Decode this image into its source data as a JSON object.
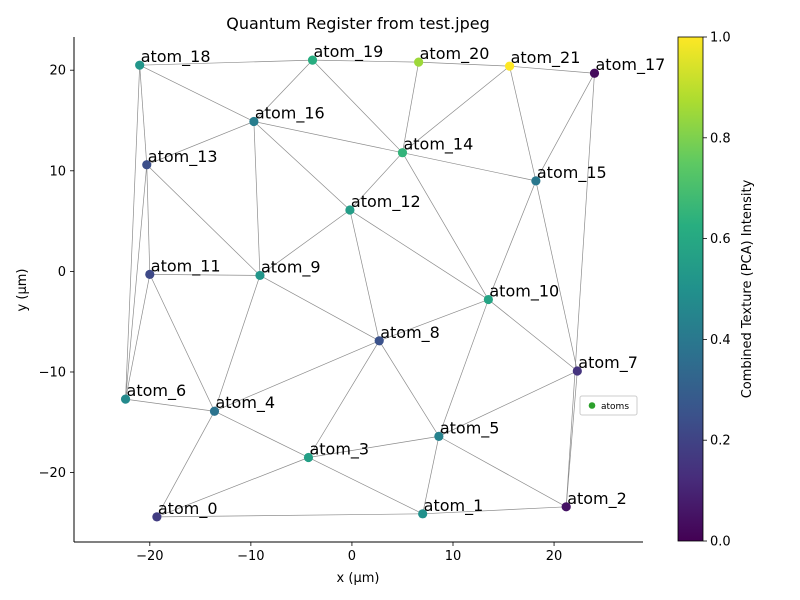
{
  "chart_data": {
    "type": "scatter",
    "title": "Quantum Register from test.jpeg",
    "xlabel": "x (μm)",
    "ylabel": "y (μm)",
    "xlim": [
      -27.5,
      28.8
    ],
    "ylim": [
      -26.9,
      23.3
    ],
    "x_ticks": [
      -20,
      -10,
      0,
      10,
      20
    ],
    "y_ticks": [
      -20,
      -10,
      0,
      10,
      20
    ],
    "x_tick_labels": [
      "−20",
      "−10",
      "0",
      "10",
      "20"
    ],
    "y_tick_labels": [
      "−20",
      "−10",
      "0",
      "10",
      "20"
    ],
    "grid": false,
    "legend": {
      "position": "right",
      "entries": [
        {
          "label": "atoms",
          "color": "#2ca02c"
        }
      ]
    },
    "colorbar": {
      "label": "Combined Texture (PCA) Intensity",
      "range": [
        0.0,
        1.0
      ],
      "ticks": [
        0.0,
        0.2,
        0.4,
        0.6,
        0.8,
        1.0
      ],
      "tick_labels": [
        "0.0",
        "0.2",
        "0.4",
        "0.6",
        "0.8",
        "1.0"
      ],
      "colormap": "viridis"
    },
    "points": [
      {
        "label": "atom_0",
        "x": -19.3,
        "y": -24.4,
        "value": 0.18
      },
      {
        "label": "atom_1",
        "x": 7.0,
        "y": -24.1,
        "value": 0.5
      },
      {
        "label": "atom_2",
        "x": 21.2,
        "y": -23.4,
        "value": 0.05
      },
      {
        "label": "atom_3",
        "x": -4.3,
        "y": -18.5,
        "value": 0.56
      },
      {
        "label": "atom_4",
        "x": -13.6,
        "y": -13.9,
        "value": 0.38
      },
      {
        "label": "atom_5",
        "x": 8.6,
        "y": -16.4,
        "value": 0.44
      },
      {
        "label": "atom_6",
        "x": -22.4,
        "y": -12.7,
        "value": 0.47
      },
      {
        "label": "atom_7",
        "x": 22.3,
        "y": -9.9,
        "value": 0.15
      },
      {
        "label": "atom_8",
        "x": 2.7,
        "y": -6.9,
        "value": 0.25
      },
      {
        "label": "atom_9",
        "x": -9.1,
        "y": -0.4,
        "value": 0.52
      },
      {
        "label": "atom_10",
        "x": 13.5,
        "y": -2.8,
        "value": 0.58
      },
      {
        "label": "atom_11",
        "x": -20.0,
        "y": -0.3,
        "value": 0.22
      },
      {
        "label": "atom_12",
        "x": -0.2,
        "y": 6.1,
        "value": 0.55
      },
      {
        "label": "atom_13",
        "x": -20.3,
        "y": 10.6,
        "value": 0.24
      },
      {
        "label": "atom_14",
        "x": 5.0,
        "y": 11.8,
        "value": 0.65
      },
      {
        "label": "atom_15",
        "x": 18.2,
        "y": 9.0,
        "value": 0.4
      },
      {
        "label": "atom_16",
        "x": -9.7,
        "y": 14.9,
        "value": 0.42
      },
      {
        "label": "atom_17",
        "x": 24.0,
        "y": 19.7,
        "value": 0.03
      },
      {
        "label": "atom_18",
        "x": -21.0,
        "y": 20.5,
        "value": 0.52
      },
      {
        "label": "atom_19",
        "x": -3.9,
        "y": 21.0,
        "value": 0.62
      },
      {
        "label": "atom_20",
        "x": 6.6,
        "y": 20.8,
        "value": 0.85
      },
      {
        "label": "atom_21",
        "x": 15.6,
        "y": 20.4,
        "value": 1.0
      }
    ],
    "edges": [
      [
        "atom_0",
        "atom_1"
      ],
      [
        "atom_0",
        "atom_3"
      ],
      [
        "atom_0",
        "atom_4"
      ],
      [
        "atom_1",
        "atom_2"
      ],
      [
        "atom_1",
        "atom_3"
      ],
      [
        "atom_1",
        "atom_5"
      ],
      [
        "atom_2",
        "atom_5"
      ],
      [
        "atom_2",
        "atom_7"
      ],
      [
        "atom_2",
        "atom_17"
      ],
      [
        "atom_3",
        "atom_4"
      ],
      [
        "atom_3",
        "atom_5"
      ],
      [
        "atom_3",
        "atom_8"
      ],
      [
        "atom_4",
        "atom_6"
      ],
      [
        "atom_4",
        "atom_8"
      ],
      [
        "atom_4",
        "atom_9"
      ],
      [
        "atom_4",
        "atom_11"
      ],
      [
        "atom_5",
        "atom_7"
      ],
      [
        "atom_5",
        "atom_8"
      ],
      [
        "atom_5",
        "atom_10"
      ],
      [
        "atom_6",
        "atom_11"
      ],
      [
        "atom_6",
        "atom_13"
      ],
      [
        "atom_6",
        "atom_18"
      ],
      [
        "atom_7",
        "atom_10"
      ],
      [
        "atom_7",
        "atom_15"
      ],
      [
        "atom_8",
        "atom_9"
      ],
      [
        "atom_8",
        "atom_10"
      ],
      [
        "atom_8",
        "atom_12"
      ],
      [
        "atom_9",
        "atom_11"
      ],
      [
        "atom_9",
        "atom_12"
      ],
      [
        "atom_9",
        "atom_13"
      ],
      [
        "atom_9",
        "atom_16"
      ],
      [
        "atom_10",
        "atom_12"
      ],
      [
        "atom_10",
        "atom_14"
      ],
      [
        "atom_10",
        "atom_15"
      ],
      [
        "atom_11",
        "atom_13"
      ],
      [
        "atom_12",
        "atom_14"
      ],
      [
        "atom_12",
        "atom_16"
      ],
      [
        "atom_13",
        "atom_16"
      ],
      [
        "atom_13",
        "atom_18"
      ],
      [
        "atom_14",
        "atom_15"
      ],
      [
        "atom_14",
        "atom_16"
      ],
      [
        "atom_14",
        "atom_19"
      ],
      [
        "atom_14",
        "atom_20"
      ],
      [
        "atom_14",
        "atom_21"
      ],
      [
        "atom_15",
        "atom_17"
      ],
      [
        "atom_15",
        "atom_21"
      ],
      [
        "atom_16",
        "atom_18"
      ],
      [
        "atom_16",
        "atom_19"
      ],
      [
        "atom_17",
        "atom_21"
      ],
      [
        "atom_18",
        "atom_19"
      ],
      [
        "atom_19",
        "atom_20"
      ],
      [
        "atom_20",
        "atom_21"
      ]
    ]
  }
}
